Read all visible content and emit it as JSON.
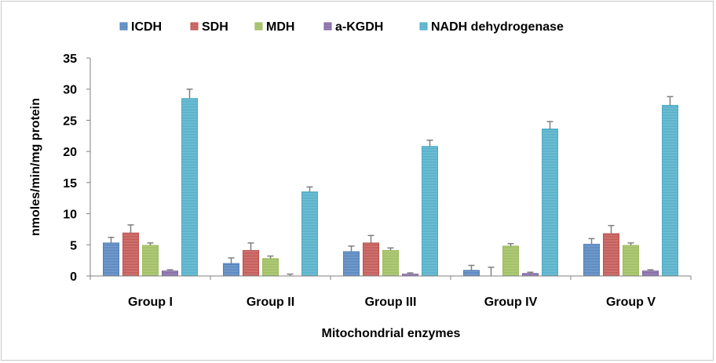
{
  "chart_data": {
    "type": "bar",
    "xlabel": "Mitochondrial enzymes",
    "ylabel": "nmoles/min/mg protein",
    "ylim": [
      0,
      35
    ],
    "yticks": [
      0,
      5,
      10,
      15,
      20,
      25,
      30,
      35
    ],
    "categories": [
      "Group I",
      "Group II",
      "Group III",
      "Group IV",
      "Group V"
    ],
    "legend_position": "top",
    "grid": false,
    "series": [
      {
        "name": "ICDH",
        "color": "#4f81bd",
        "values": [
          5.3,
          2.0,
          3.9,
          0.9,
          5.1
        ],
        "errors": [
          0.9,
          0.9,
          0.9,
          0.8,
          0.9
        ]
      },
      {
        "name": "SDH",
        "color": "#c0504d",
        "values": [
          6.9,
          4.1,
          5.3,
          0.0,
          6.8
        ],
        "errors": [
          1.3,
          1.2,
          1.2,
          1.4,
          1.3
        ]
      },
      {
        "name": "MDH",
        "color": "#9bbb59",
        "values": [
          4.9,
          2.8,
          4.1,
          4.8,
          4.9
        ],
        "errors": [
          0.4,
          0.4,
          0.4,
          0.4,
          0.4
        ]
      },
      {
        "name": "a-KGDH",
        "color": "#8064a2",
        "values": [
          0.8,
          0.0,
          0.3,
          0.4,
          0.8
        ],
        "errors": [
          0.2,
          0.3,
          0.2,
          0.2,
          0.2
        ]
      },
      {
        "name": "NADH dehydrogenase",
        "color": "#4bacc6",
        "values": [
          28.5,
          13.5,
          20.8,
          23.6,
          27.4
        ],
        "errors": [
          1.5,
          0.8,
          1.0,
          1.2,
          1.4
        ]
      }
    ]
  }
}
